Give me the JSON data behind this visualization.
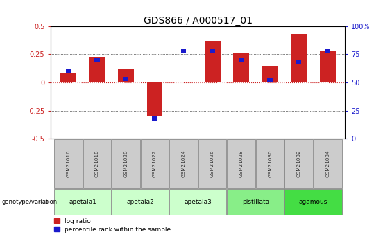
{
  "title": "GDS866 / A000517_01",
  "samples": [
    "GSM21016",
    "GSM21018",
    "GSM21020",
    "GSM21022",
    "GSM21024",
    "GSM21026",
    "GSM21028",
    "GSM21030",
    "GSM21032",
    "GSM21034"
  ],
  "log_ratio": [
    0.08,
    0.22,
    0.12,
    -0.3,
    0.0,
    0.37,
    0.26,
    0.15,
    0.43,
    0.28
  ],
  "percentile_rank_pct": [
    60,
    70,
    53,
    18,
    78,
    78,
    70,
    52,
    68,
    78
  ],
  "groups": [
    {
      "label": "apetala1",
      "start": 0,
      "end": 2,
      "color": "#ccffcc"
    },
    {
      "label": "apetala2",
      "start": 2,
      "end": 4,
      "color": "#ccffcc"
    },
    {
      "label": "apetala3",
      "start": 4,
      "end": 6,
      "color": "#ccffcc"
    },
    {
      "label": "pistillata",
      "start": 6,
      "end": 8,
      "color": "#88ee88"
    },
    {
      "label": "agamous",
      "start": 8,
      "end": 10,
      "color": "#44dd44"
    }
  ],
  "left_ylim": [
    -0.5,
    0.5
  ],
  "right_ylim": [
    0,
    100
  ],
  "yticks_left": [
    -0.5,
    -0.25,
    0.0,
    0.25,
    0.5
  ],
  "yticks_right": [
    0,
    25,
    50,
    75,
    100
  ],
  "bar_color_red": "#cc2222",
  "bar_color_blue": "#1a1acc",
  "grid_color": "#000000",
  "zero_line_color": "#cc2222",
  "sample_box_color": "#cccccc",
  "background_color": "#ffffff",
  "title_fontsize": 10,
  "tick_fontsize": 7,
  "label_fontsize": 7
}
